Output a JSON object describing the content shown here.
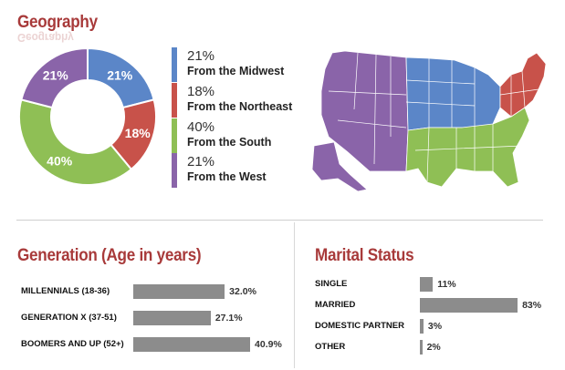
{
  "geography": {
    "title": "Geography",
    "reflection": "Geography",
    "legend": [
      {
        "pct": "21%",
        "label": "From the Midwest",
        "color": "#5b86c8"
      },
      {
        "pct": "18%",
        "label": "From the Northeast",
        "color": "#c8524a"
      },
      {
        "pct": "40%",
        "label": "From the South",
        "color": "#8fbf55"
      },
      {
        "pct": "21%",
        "label": "From the West",
        "color": "#8a64a9"
      }
    ]
  },
  "generation": {
    "title": "Generation (Age in years)",
    "rows": [
      {
        "label": "MILLENNIALS (18-36)",
        "value_text": "32.0%"
      },
      {
        "label": "GENERATION X (37-51)",
        "value_text": "27.1%"
      },
      {
        "label": "BOOMERS AND UP (52+)",
        "value_text": "40.9%"
      }
    ]
  },
  "marital": {
    "title": "Marital Status",
    "rows": [
      {
        "label": "SINGLE",
        "value_text": "11%"
      },
      {
        "label": "MARRIED",
        "value_text": "83%"
      },
      {
        "label": "DOMESTIC PARTNER",
        "value_text": "3%"
      },
      {
        "label": "OTHER",
        "value_text": "2%"
      }
    ]
  },
  "chart_data": [
    {
      "type": "pie",
      "title": "Geography",
      "categories": [
        "From the Midwest",
        "From the Northeast",
        "From the South",
        "From the West"
      ],
      "values": [
        21,
        18,
        40,
        21
      ],
      "labels": [
        "21%",
        "18%",
        "40%",
        "21%"
      ],
      "colors": [
        "#5b86c8",
        "#c8524a",
        "#8fbf55",
        "#8a64a9"
      ],
      "legend": "right"
    },
    {
      "type": "bar",
      "orientation": "horizontal",
      "title": "Generation (Age in years)",
      "categories": [
        "MILLENNIALS (18-36)",
        "GENERATION X (37-51)",
        "BOOMERS AND UP (52+)"
      ],
      "values": [
        32.0,
        27.1,
        40.9
      ],
      "color": "#8c8c8c"
    },
    {
      "type": "bar",
      "orientation": "horizontal",
      "title": "Marital Status",
      "categories": [
        "SINGLE",
        "MARRIED",
        "DOMESTIC PARTNER",
        "OTHER"
      ],
      "values": [
        11,
        83,
        3,
        2
      ],
      "color": "#8c8c8c"
    }
  ]
}
